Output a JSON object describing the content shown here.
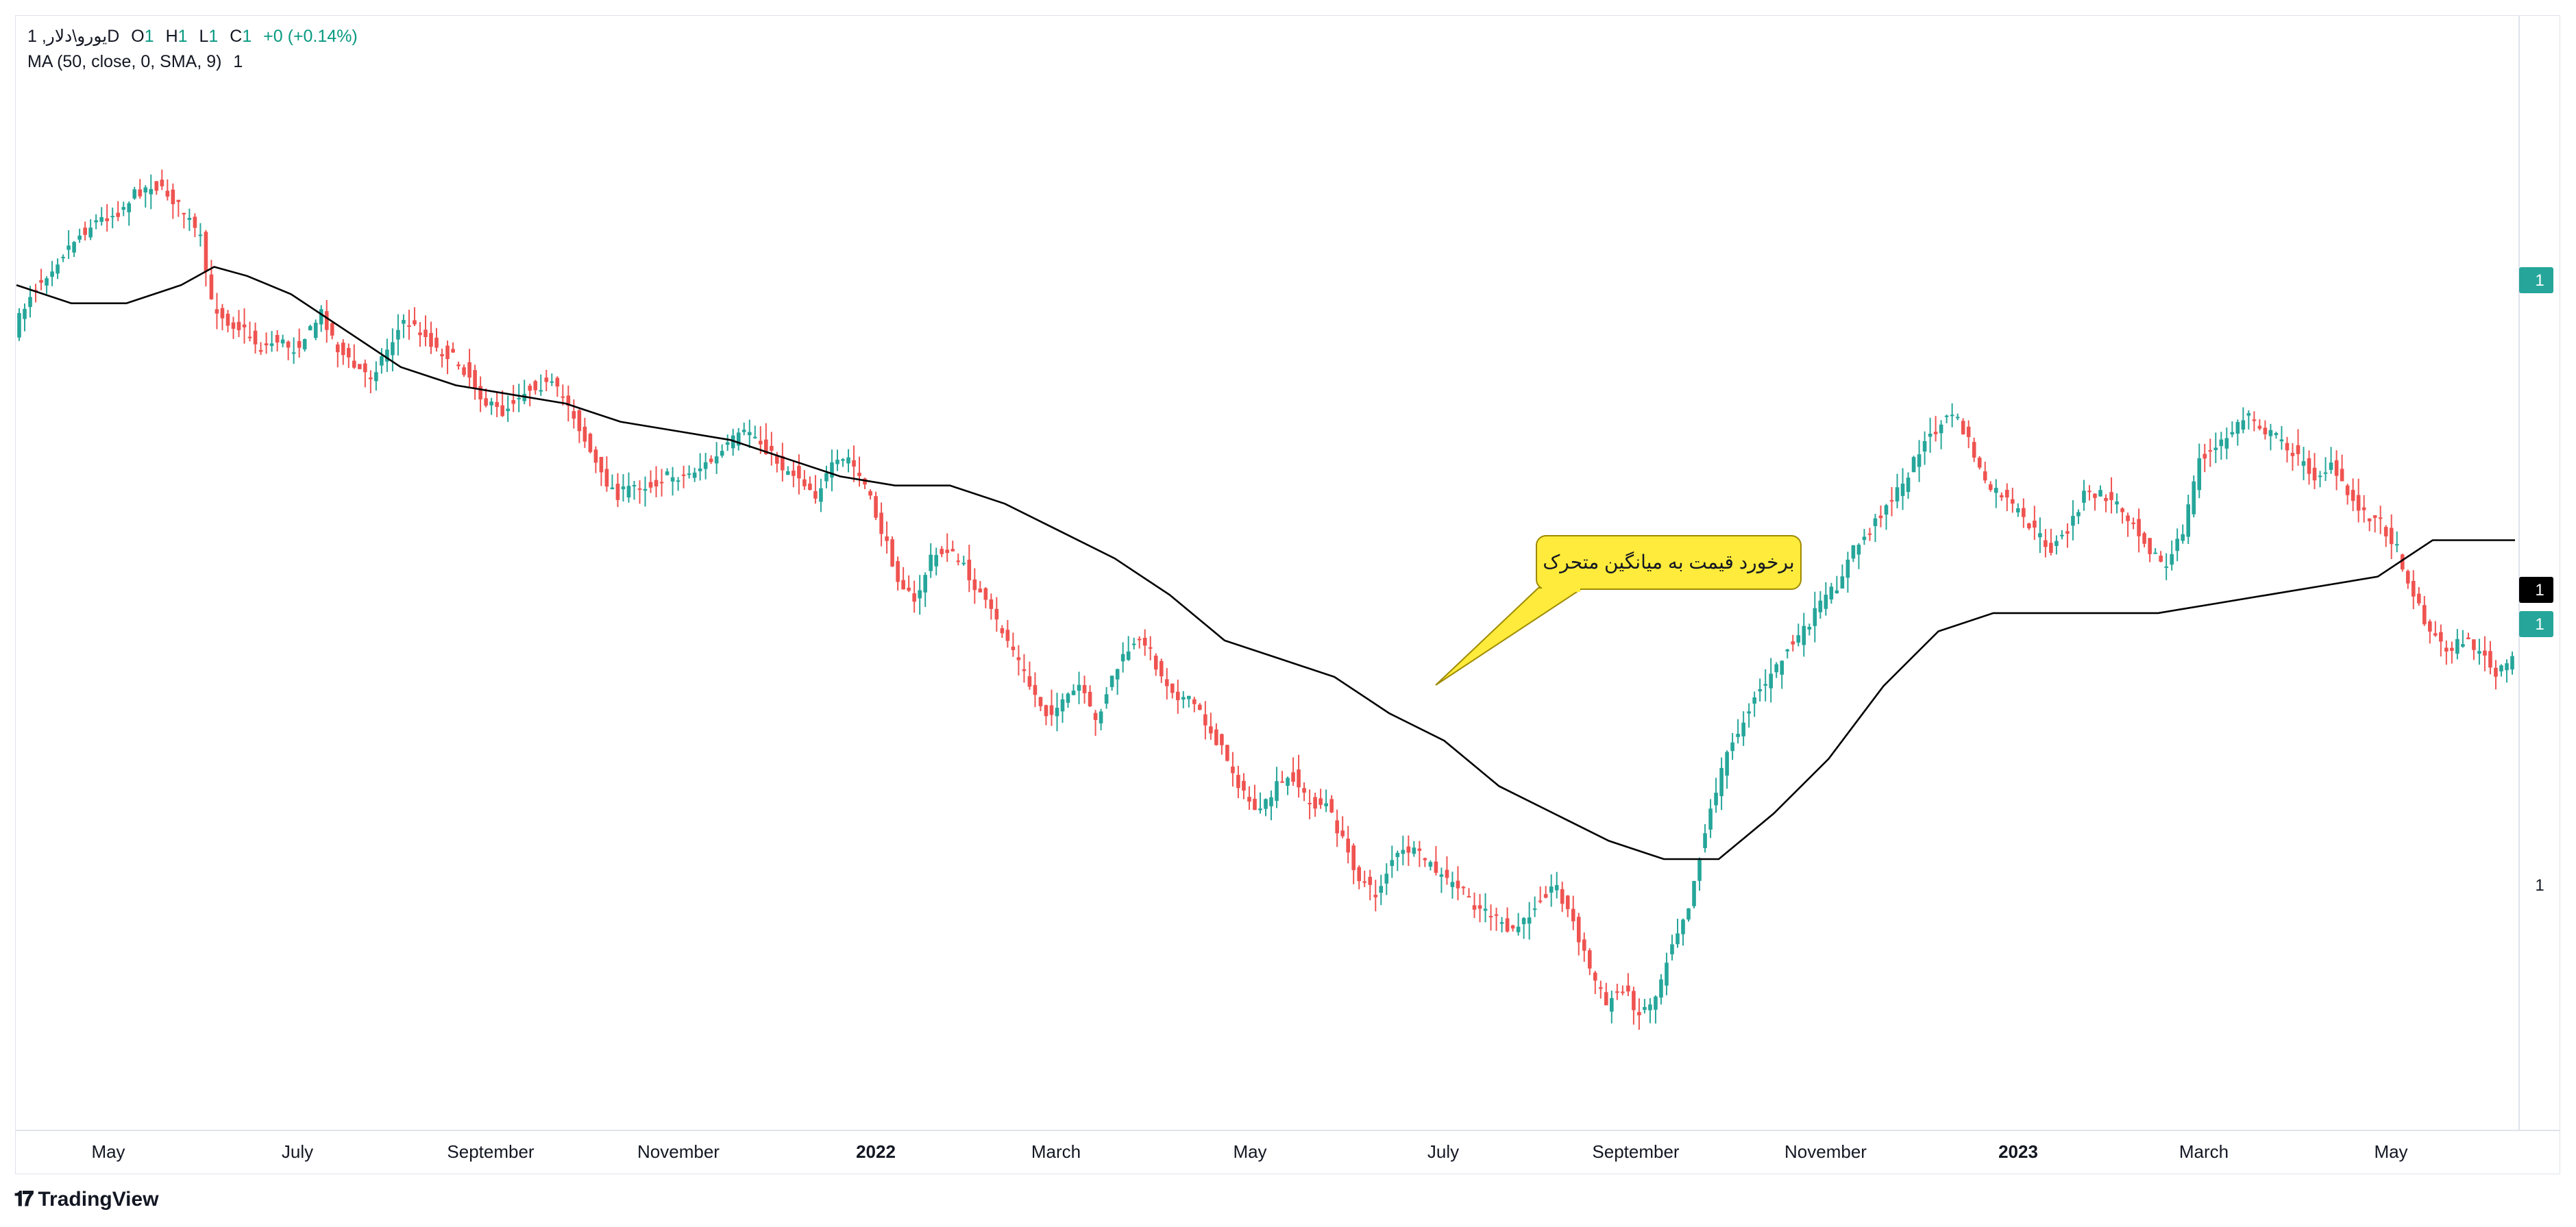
{
  "legend": {
    "symbol": "یورو\\دلار, 1D",
    "o_label": "O",
    "o_value": "1",
    "h_label": "H",
    "h_value": "1",
    "l_label": "L",
    "l_value": "1",
    "c_label": "C",
    "c_value": "1",
    "change": "+0 (+0.14%)",
    "indicator": "MA (50, close, 0, SMA, 9)",
    "indicator_value": "1"
  },
  "branding": {
    "logo_text": "TradingView",
    "logo_icon": "tradingview-logo-icon"
  },
  "colors": {
    "up": "#26a69a",
    "down": "#ef5350",
    "ma_line": "#000000",
    "callout_fill": "#ffeb3b",
    "price_badge": "#26a69a",
    "ma_badge": "#000000"
  },
  "price_axis": {
    "labels": [
      "1",
      "1"
    ],
    "current_price_badge": "1",
    "ma_badge": "1",
    "last_close_badge": "1"
  },
  "chart_data": {
    "type": "candlestick",
    "x_tick_labels": [
      "May",
      "July",
      "September",
      "November",
      "2022",
      "March",
      "May",
      "July",
      "September",
      "November",
      "2023",
      "March",
      "May"
    ],
    "annotation": {
      "text": "برخورد قیمت به میانگین متحرک"
    },
    "close_path": [
      [
        0,
        0.22
      ],
      [
        3,
        0.18
      ],
      [
        7,
        0.15
      ],
      [
        11,
        0.12
      ],
      [
        15,
        0.1
      ],
      [
        19,
        0.09
      ],
      [
        22,
        0.07
      ],
      [
        25,
        0.06
      ],
      [
        28,
        0.07
      ],
      [
        31,
        0.09
      ],
      [
        34,
        0.12
      ],
      [
        36,
        0.19
      ],
      [
        39,
        0.21
      ],
      [
        42,
        0.22
      ],
      [
        45,
        0.24
      ],
      [
        48,
        0.23
      ],
      [
        51,
        0.24
      ],
      [
        54,
        0.22
      ],
      [
        56,
        0.2
      ],
      [
        59,
        0.24
      ],
      [
        62,
        0.26
      ],
      [
        65,
        0.27
      ],
      [
        68,
        0.24
      ],
      [
        71,
        0.21
      ],
      [
        74,
        0.22
      ],
      [
        77,
        0.24
      ],
      [
        80,
        0.25
      ],
      [
        83,
        0.27
      ],
      [
        86,
        0.3
      ],
      [
        89,
        0.31
      ],
      [
        92,
        0.29
      ],
      [
        95,
        0.28
      ],
      [
        98,
        0.28
      ],
      [
        101,
        0.3
      ],
      [
        104,
        0.34
      ],
      [
        107,
        0.38
      ],
      [
        110,
        0.4
      ],
      [
        113,
        0.39
      ],
      [
        116,
        0.39
      ],
      [
        119,
        0.38
      ],
      [
        122,
        0.38
      ],
      [
        125,
        0.37
      ],
      [
        128,
        0.36
      ],
      [
        131,
        0.34
      ],
      [
        134,
        0.33
      ],
      [
        137,
        0.35
      ],
      [
        140,
        0.37
      ],
      [
        143,
        0.38
      ],
      [
        146,
        0.4
      ],
      [
        149,
        0.37
      ],
      [
        152,
        0.36
      ],
      [
        155,
        0.39
      ],
      [
        158,
        0.44
      ],
      [
        161,
        0.49
      ],
      [
        164,
        0.52
      ],
      [
        167,
        0.47
      ],
      [
        170,
        0.46
      ],
      [
        173,
        0.48
      ],
      [
        176,
        0.51
      ],
      [
        179,
        0.54
      ],
      [
        182,
        0.57
      ],
      [
        185,
        0.61
      ],
      [
        188,
        0.64
      ],
      [
        191,
        0.63
      ],
      [
        194,
        0.61
      ],
      [
        197,
        0.65
      ],
      [
        200,
        0.6
      ],
      [
        203,
        0.57
      ],
      [
        206,
        0.56
      ],
      [
        209,
        0.6
      ],
      [
        212,
        0.62
      ],
      [
        215,
        0.63
      ],
      [
        218,
        0.66
      ],
      [
        221,
        0.69
      ],
      [
        224,
        0.73
      ],
      [
        227,
        0.75
      ],
      [
        230,
        0.72
      ],
      [
        233,
        0.71
      ],
      [
        236,
        0.74
      ],
      [
        239,
        0.74
      ],
      [
        242,
        0.78
      ],
      [
        245,
        0.82
      ],
      [
        248,
        0.84
      ],
      [
        251,
        0.8
      ],
      [
        254,
        0.79
      ],
      [
        257,
        0.8
      ],
      [
        260,
        0.82
      ],
      [
        263,
        0.83
      ],
      [
        266,
        0.85
      ],
      [
        269,
        0.86
      ],
      [
        272,
        0.88
      ],
      [
        275,
        0.87
      ],
      [
        278,
        0.84
      ],
      [
        281,
        0.83
      ],
      [
        284,
        0.87
      ],
      [
        287,
        0.92
      ],
      [
        290,
        0.96
      ],
      [
        293,
        0.94
      ],
      [
        296,
        0.97
      ],
      [
        299,
        0.95
      ],
      [
        302,
        0.89
      ],
      [
        305,
        0.85
      ],
      [
        308,
        0.77
      ],
      [
        311,
        0.7
      ],
      [
        314,
        0.66
      ],
      [
        317,
        0.62
      ],
      [
        320,
        0.6
      ],
      [
        323,
        0.57
      ],
      [
        326,
        0.55
      ],
      [
        329,
        0.52
      ],
      [
        332,
        0.5
      ],
      [
        335,
        0.46
      ],
      [
        338,
        0.44
      ],
      [
        341,
        0.41
      ],
      [
        344,
        0.39
      ],
      [
        347,
        0.35
      ],
      [
        350,
        0.33
      ],
      [
        353,
        0.31
      ],
      [
        356,
        0.34
      ],
      [
        359,
        0.39
      ],
      [
        362,
        0.4
      ],
      [
        365,
        0.42
      ],
      [
        368,
        0.44
      ],
      [
        371,
        0.46
      ],
      [
        374,
        0.44
      ],
      [
        377,
        0.4
      ],
      [
        380,
        0.4
      ],
      [
        383,
        0.41
      ],
      [
        386,
        0.43
      ],
      [
        389,
        0.46
      ],
      [
        392,
        0.48
      ],
      [
        395,
        0.44
      ],
      [
        398,
        0.36
      ],
      [
        401,
        0.35
      ],
      [
        404,
        0.33
      ],
      [
        407,
        0.31
      ],
      [
        410,
        0.33
      ],
      [
        413,
        0.34
      ],
      [
        416,
        0.36
      ],
      [
        419,
        0.38
      ],
      [
        422,
        0.37
      ],
      [
        425,
        0.4
      ],
      [
        428,
        0.42
      ],
      [
        431,
        0.43
      ],
      [
        434,
        0.46
      ],
      [
        437,
        0.51
      ],
      [
        440,
        0.55
      ],
      [
        443,
        0.57
      ],
      [
        446,
        0.56
      ],
      [
        449,
        0.57
      ],
      [
        452,
        0.6
      ],
      [
        455,
        0.58
      ]
    ],
    "ma_path": [
      [
        0,
        0.17
      ],
      [
        10,
        0.19
      ],
      [
        20,
        0.19
      ],
      [
        30,
        0.17
      ],
      [
        36,
        0.15
      ],
      [
        42,
        0.16
      ],
      [
        50,
        0.18
      ],
      [
        60,
        0.22
      ],
      [
        70,
        0.26
      ],
      [
        80,
        0.28
      ],
      [
        90,
        0.29
      ],
      [
        100,
        0.3
      ],
      [
        110,
        0.32
      ],
      [
        120,
        0.33
      ],
      [
        130,
        0.34
      ],
      [
        140,
        0.36
      ],
      [
        150,
        0.38
      ],
      [
        160,
        0.39
      ],
      [
        170,
        0.39
      ],
      [
        180,
        0.41
      ],
      [
        190,
        0.44
      ],
      [
        200,
        0.47
      ],
      [
        210,
        0.51
      ],
      [
        220,
        0.56
      ],
      [
        230,
        0.58
      ],
      [
        240,
        0.6
      ],
      [
        250,
        0.64
      ],
      [
        260,
        0.67
      ],
      [
        270,
        0.72
      ],
      [
        280,
        0.75
      ],
      [
        290,
        0.78
      ],
      [
        300,
        0.8
      ],
      [
        310,
        0.8
      ],
      [
        320,
        0.75
      ],
      [
        330,
        0.69
      ],
      [
        340,
        0.61
      ],
      [
        350,
        0.55
      ],
      [
        360,
        0.53
      ],
      [
        370,
        0.53
      ],
      [
        380,
        0.53
      ],
      [
        390,
        0.53
      ],
      [
        400,
        0.52
      ],
      [
        410,
        0.51
      ],
      [
        420,
        0.5
      ],
      [
        430,
        0.49
      ],
      [
        435,
        0.47
      ],
      [
        440,
        0.45
      ],
      [
        446,
        0.45
      ],
      [
        455,
        0.45
      ]
    ]
  }
}
